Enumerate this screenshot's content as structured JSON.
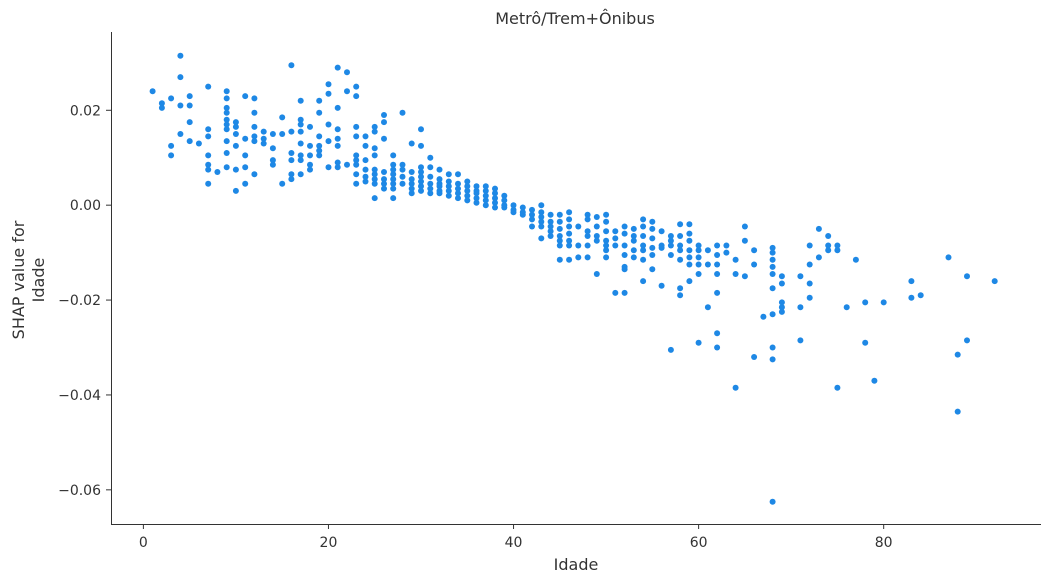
{
  "chart_data": {
    "type": "scatter",
    "title": "Metrô/Trem+Ônibus",
    "xlabel": "Idade",
    "ylabel_lines": [
      "SHAP value for",
      "Idade"
    ],
    "xlim": [
      -3.5,
      97
    ],
    "ylim": [
      -0.0672,
      0.0365
    ],
    "xticks": [
      0,
      20,
      40,
      60,
      80
    ],
    "xtick_labels": [
      "0",
      "20",
      "40",
      "60",
      "80"
    ],
    "yticks": [
      0.02,
      0.0,
      -0.02,
      -0.04,
      -0.06
    ],
    "ytick_labels": [
      "0.02",
      "0.00",
      "−0.02",
      "−0.04",
      "−0.06"
    ],
    "grid": false,
    "color": "#1e88e5",
    "points": [
      [
        1,
        0.024
      ],
      [
        2,
        0.0215
      ],
      [
        2,
        0.0205
      ],
      [
        3,
        0.0225
      ],
      [
        3,
        0.0125
      ],
      [
        3,
        0.0105
      ],
      [
        4,
        0.0315
      ],
      [
        4,
        0.027
      ],
      [
        4,
        0.021
      ],
      [
        4,
        0.015
      ],
      [
        5,
        0.023
      ],
      [
        5,
        0.021
      ],
      [
        5,
        0.0175
      ],
      [
        5,
        0.0135
      ],
      [
        6,
        0.013
      ],
      [
        7,
        0.025
      ],
      [
        7,
        0.016
      ],
      [
        7,
        0.0145
      ],
      [
        7,
        0.0105
      ],
      [
        7,
        0.0085
      ],
      [
        7,
        0.0075
      ],
      [
        7,
        0.0045
      ],
      [
        8,
        0.007
      ],
      [
        9,
        0.024
      ],
      [
        9,
        0.0225
      ],
      [
        9,
        0.0205
      ],
      [
        9,
        0.0195
      ],
      [
        9,
        0.018
      ],
      [
        9,
        0.017
      ],
      [
        9,
        0.016
      ],
      [
        9,
        0.0135
      ],
      [
        9,
        0.011
      ],
      [
        9,
        0.008
      ],
      [
        10,
        0.0175
      ],
      [
        10,
        0.0165
      ],
      [
        10,
        0.015
      ],
      [
        10,
        0.0125
      ],
      [
        10,
        0.0075
      ],
      [
        10,
        0.003
      ],
      [
        11,
        0.023
      ],
      [
        11,
        0.014
      ],
      [
        11,
        0.0105
      ],
      [
        11,
        0.008
      ],
      [
        11,
        0.0045
      ],
      [
        12,
        0.0225
      ],
      [
        12,
        0.0195
      ],
      [
        12,
        0.0165
      ],
      [
        12,
        0.0145
      ],
      [
        12,
        0.0135
      ],
      [
        12,
        0.0065
      ],
      [
        13,
        0.0155
      ],
      [
        13,
        0.014
      ],
      [
        13,
        0.013
      ],
      [
        14,
        0.015
      ],
      [
        14,
        0.012
      ],
      [
        14,
        0.0095
      ],
      [
        14,
        0.0085
      ],
      [
        15,
        0.0185
      ],
      [
        15,
        0.015
      ],
      [
        15,
        0.0045
      ],
      [
        16,
        0.0295
      ],
      [
        16,
        0.0155
      ],
      [
        16,
        0.011
      ],
      [
        16,
        0.0095
      ],
      [
        16,
        0.0065
      ],
      [
        16,
        0.0055
      ],
      [
        17,
        0.022
      ],
      [
        17,
        0.018
      ],
      [
        17,
        0.017
      ],
      [
        17,
        0.0155
      ],
      [
        17,
        0.013
      ],
      [
        17,
        0.0105
      ],
      [
        17,
        0.0095
      ],
      [
        17,
        0.0065
      ],
      [
        18,
        0.0165
      ],
      [
        18,
        0.0125
      ],
      [
        18,
        0.0105
      ],
      [
        18,
        0.0085
      ],
      [
        18,
        0.0075
      ],
      [
        19,
        0.022
      ],
      [
        19,
        0.0195
      ],
      [
        19,
        0.0145
      ],
      [
        19,
        0.0125
      ],
      [
        19,
        0.0115
      ],
      [
        19,
        0.0105
      ],
      [
        20,
        0.0255
      ],
      [
        20,
        0.0235
      ],
      [
        20,
        0.017
      ],
      [
        20,
        0.0135
      ],
      [
        20,
        0.008
      ],
      [
        21,
        0.029
      ],
      [
        21,
        0.0205
      ],
      [
        21,
        0.016
      ],
      [
        21,
        0.014
      ],
      [
        21,
        0.0125
      ],
      [
        21,
        0.009
      ],
      [
        21,
        0.008
      ],
      [
        22,
        0.028
      ],
      [
        22,
        0.024
      ],
      [
        22,
        0.0085
      ],
      [
        23,
        0.025
      ],
      [
        23,
        0.023
      ],
      [
        23,
        0.0165
      ],
      [
        23,
        0.0145
      ],
      [
        23,
        0.0105
      ],
      [
        23,
        0.0095
      ],
      [
        23,
        0.0085
      ],
      [
        23,
        0.0065
      ],
      [
        23,
        0.0045
      ],
      [
        24,
        0.0145
      ],
      [
        24,
        0.0125
      ],
      [
        24,
        0.0095
      ],
      [
        24,
        0.0075
      ],
      [
        24,
        0.006
      ],
      [
        24,
        0.005
      ],
      [
        25,
        0.0165
      ],
      [
        25,
        0.0155
      ],
      [
        25,
        0.012
      ],
      [
        25,
        0.0105
      ],
      [
        25,
        0.0075
      ],
      [
        25,
        0.0065
      ],
      [
        25,
        0.0055
      ],
      [
        25,
        0.0045
      ],
      [
        25,
        0.0015
      ],
      [
        26,
        0.019
      ],
      [
        26,
        0.0175
      ],
      [
        26,
        0.014
      ],
      [
        26,
        0.007
      ],
      [
        26,
        0.0055
      ],
      [
        26,
        0.0045
      ],
      [
        26,
        0.0035
      ],
      [
        27,
        0.0105
      ],
      [
        27,
        0.0085
      ],
      [
        27,
        0.0075
      ],
      [
        27,
        0.0065
      ],
      [
        27,
        0.0055
      ],
      [
        27,
        0.0045
      ],
      [
        27,
        0.0035
      ],
      [
        27,
        0.0015
      ],
      [
        28,
        0.0195
      ],
      [
        28,
        0.0085
      ],
      [
        28,
        0.0075
      ],
      [
        28,
        0.006
      ],
      [
        28,
        0.0045
      ],
      [
        29,
        0.013
      ],
      [
        29,
        0.007
      ],
      [
        29,
        0.0055
      ],
      [
        29,
        0.0045
      ],
      [
        29,
        0.0035
      ],
      [
        29,
        0.0025
      ],
      [
        30,
        0.016
      ],
      [
        30,
        0.0125
      ],
      [
        30,
        0.008
      ],
      [
        30,
        0.007
      ],
      [
        30,
        0.006
      ],
      [
        30,
        0.005
      ],
      [
        30,
        0.004
      ],
      [
        30,
        0.003
      ],
      [
        31,
        0.01
      ],
      [
        31,
        0.008
      ],
      [
        31,
        0.006
      ],
      [
        31,
        0.0045
      ],
      [
        31,
        0.0035
      ],
      [
        31,
        0.0025
      ],
      [
        32,
        0.0075
      ],
      [
        32,
        0.0055
      ],
      [
        32,
        0.0045
      ],
      [
        32,
        0.004
      ],
      [
        32,
        0.003
      ],
      [
        32,
        0.0025
      ],
      [
        33,
        0.0065
      ],
      [
        33,
        0.005
      ],
      [
        33,
        0.004
      ],
      [
        33,
        0.003
      ],
      [
        33,
        0.002
      ],
      [
        34,
        0.0065
      ],
      [
        34,
        0.0045
      ],
      [
        34,
        0.0035
      ],
      [
        34,
        0.0025
      ],
      [
        34,
        0.0015
      ],
      [
        35,
        0.005
      ],
      [
        35,
        0.004
      ],
      [
        35,
        0.003
      ],
      [
        35,
        0.002
      ],
      [
        35,
        0.001
      ],
      [
        36,
        0.004
      ],
      [
        36,
        0.003
      ],
      [
        36,
        0.0025
      ],
      [
        36,
        0.0015
      ],
      [
        36,
        0.0005
      ],
      [
        37,
        0.004
      ],
      [
        37,
        0.003
      ],
      [
        37,
        0.002
      ],
      [
        37,
        0.001
      ],
      [
        37,
        0.0
      ],
      [
        38,
        0.0035
      ],
      [
        38,
        0.0025
      ],
      [
        38,
        0.0015
      ],
      [
        38,
        0.0005
      ],
      [
        38,
        -0.0005
      ],
      [
        39,
        0.002
      ],
      [
        39,
        0.001
      ],
      [
        39,
        0.0
      ],
      [
        39,
        -0.0005
      ],
      [
        40,
        0.0
      ],
      [
        40,
        -0.001
      ],
      [
        40,
        -0.0015
      ],
      [
        41,
        -0.0005
      ],
      [
        41,
        -0.0015
      ],
      [
        41,
        -0.002
      ],
      [
        42,
        -0.001
      ],
      [
        42,
        -0.002
      ],
      [
        42,
        -0.003
      ],
      [
        42,
        -0.0045
      ],
      [
        43,
        0.0
      ],
      [
        43,
        -0.0015
      ],
      [
        43,
        -0.0025
      ],
      [
        43,
        -0.0035
      ],
      [
        43,
        -0.0045
      ],
      [
        43,
        -0.007
      ],
      [
        44,
        -0.002
      ],
      [
        44,
        -0.0035
      ],
      [
        44,
        -0.0045
      ],
      [
        44,
        -0.0055
      ],
      [
        44,
        -0.0065
      ],
      [
        45,
        -0.002
      ],
      [
        45,
        -0.0035
      ],
      [
        45,
        -0.005
      ],
      [
        45,
        -0.0065
      ],
      [
        45,
        -0.0075
      ],
      [
        45,
        -0.0085
      ],
      [
        45,
        -0.0115
      ],
      [
        46,
        -0.0015
      ],
      [
        46,
        -0.003
      ],
      [
        46,
        -0.0045
      ],
      [
        46,
        -0.006
      ],
      [
        46,
        -0.0075
      ],
      [
        46,
        -0.0085
      ],
      [
        46,
        -0.0115
      ],
      [
        47,
        -0.0045
      ],
      [
        47,
        -0.0085
      ],
      [
        47,
        -0.011
      ],
      [
        48,
        -0.002
      ],
      [
        48,
        -0.003
      ],
      [
        48,
        -0.0055
      ],
      [
        48,
        -0.0065
      ],
      [
        48,
        -0.0085
      ],
      [
        48,
        -0.011
      ],
      [
        49,
        -0.0025
      ],
      [
        49,
        -0.0045
      ],
      [
        49,
        -0.0065
      ],
      [
        49,
        -0.0075
      ],
      [
        49,
        -0.0145
      ],
      [
        50,
        -0.002
      ],
      [
        50,
        -0.0035
      ],
      [
        50,
        -0.0055
      ],
      [
        50,
        -0.0075
      ],
      [
        50,
        -0.0085
      ],
      [
        50,
        -0.0095
      ],
      [
        50,
        -0.011
      ],
      [
        51,
        -0.0055
      ],
      [
        51,
        -0.007
      ],
      [
        51,
        -0.0085
      ],
      [
        51,
        -0.0185
      ],
      [
        52,
        -0.0045
      ],
      [
        52,
        -0.006
      ],
      [
        52,
        -0.0085
      ],
      [
        52,
        -0.0105
      ],
      [
        52,
        -0.013
      ],
      [
        52,
        -0.0135
      ],
      [
        52,
        -0.0185
      ],
      [
        53,
        -0.005
      ],
      [
        53,
        -0.0065
      ],
      [
        53,
        -0.0075
      ],
      [
        53,
        -0.0095
      ],
      [
        53,
        -0.011
      ],
      [
        54,
        -0.003
      ],
      [
        54,
        -0.0045
      ],
      [
        54,
        -0.0065
      ],
      [
        54,
        -0.0085
      ],
      [
        54,
        -0.0095
      ],
      [
        54,
        -0.0115
      ],
      [
        54,
        -0.016
      ],
      [
        55,
        -0.0035
      ],
      [
        55,
        -0.005
      ],
      [
        55,
        -0.007
      ],
      [
        55,
        -0.009
      ],
      [
        55,
        -0.0105
      ],
      [
        55,
        -0.0135
      ],
      [
        56,
        -0.0055
      ],
      [
        56,
        -0.0085
      ],
      [
        56,
        -0.009
      ],
      [
        56,
        -0.017
      ],
      [
        57,
        -0.0065
      ],
      [
        57,
        -0.0075
      ],
      [
        57,
        -0.0085
      ],
      [
        57,
        -0.0105
      ],
      [
        57,
        -0.0305
      ],
      [
        58,
        -0.004
      ],
      [
        58,
        -0.0065
      ],
      [
        58,
        -0.0085
      ],
      [
        58,
        -0.0095
      ],
      [
        58,
        -0.0115
      ],
      [
        58,
        -0.0175
      ],
      [
        58,
        -0.019
      ],
      [
        59,
        -0.004
      ],
      [
        59,
        -0.006
      ],
      [
        59,
        -0.0075
      ],
      [
        59,
        -0.0095
      ],
      [
        59,
        -0.011
      ],
      [
        59,
        -0.0125
      ],
      [
        59,
        -0.016
      ],
      [
        60,
        -0.0085
      ],
      [
        60,
        -0.0095
      ],
      [
        60,
        -0.011
      ],
      [
        60,
        -0.0125
      ],
      [
        60,
        -0.0145
      ],
      [
        60,
        -0.029
      ],
      [
        61,
        -0.0095
      ],
      [
        61,
        -0.0125
      ],
      [
        61,
        -0.0215
      ],
      [
        62,
        -0.0085
      ],
      [
        62,
        -0.0105
      ],
      [
        62,
        -0.0125
      ],
      [
        62,
        -0.0145
      ],
      [
        62,
        -0.0185
      ],
      [
        62,
        -0.027
      ],
      [
        62,
        -0.03
      ],
      [
        63,
        -0.0085
      ],
      [
        63,
        -0.01
      ],
      [
        64,
        -0.0115
      ],
      [
        64,
        -0.0145
      ],
      [
        64,
        -0.0385
      ],
      [
        65,
        -0.0045
      ],
      [
        65,
        -0.0075
      ],
      [
        65,
        -0.015
      ],
      [
        66,
        -0.0095
      ],
      [
        66,
        -0.0125
      ],
      [
        66,
        -0.032
      ],
      [
        67,
        -0.0235
      ],
      [
        68,
        -0.009
      ],
      [
        68,
        -0.01
      ],
      [
        68,
        -0.0115
      ],
      [
        68,
        -0.013
      ],
      [
        68,
        -0.0145
      ],
      [
        68,
        -0.0175
      ],
      [
        68,
        -0.023
      ],
      [
        68,
        -0.03
      ],
      [
        68,
        -0.0325
      ],
      [
        68,
        -0.0625
      ],
      [
        69,
        -0.015
      ],
      [
        69,
        -0.0165
      ],
      [
        69,
        -0.0205
      ],
      [
        69,
        -0.0215
      ],
      [
        69,
        -0.0225
      ],
      [
        71,
        -0.015
      ],
      [
        71,
        -0.0215
      ],
      [
        71,
        -0.0285
      ],
      [
        72,
        -0.0085
      ],
      [
        72,
        -0.0125
      ],
      [
        72,
        -0.0165
      ],
      [
        72,
        -0.0195
      ],
      [
        73,
        -0.005
      ],
      [
        73,
        -0.011
      ],
      [
        74,
        -0.0065
      ],
      [
        74,
        -0.0085
      ],
      [
        74,
        -0.0095
      ],
      [
        75,
        -0.0085
      ],
      [
        75,
        -0.0095
      ],
      [
        75,
        -0.0385
      ],
      [
        76,
        -0.0215
      ],
      [
        77,
        -0.0115
      ],
      [
        78,
        -0.0205
      ],
      [
        78,
        -0.029
      ],
      [
        79,
        -0.037
      ],
      [
        80,
        -0.0205
      ],
      [
        83,
        -0.016
      ],
      [
        83,
        -0.0195
      ],
      [
        84,
        -0.019
      ],
      [
        87,
        -0.011
      ],
      [
        88,
        -0.0315
      ],
      [
        88,
        -0.0435
      ],
      [
        89,
        -0.015
      ],
      [
        89,
        -0.0285
      ],
      [
        92,
        -0.016
      ]
    ]
  }
}
